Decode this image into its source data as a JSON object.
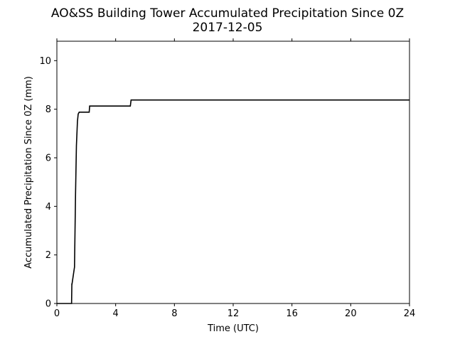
{
  "chart_data": {
    "type": "line",
    "title": "AO&SS Building Tower Accumulated Precipitation Since 0Z",
    "subtitle": "2017-12-05",
    "xlabel": "Time (UTC)",
    "ylabel": "Accumulated Precipitation Since 0Z (mm)",
    "xlim": [
      0,
      24
    ],
    "ylim": [
      0,
      10.8
    ],
    "xticks": [
      0,
      4,
      8,
      12,
      16,
      20,
      24
    ],
    "yticks": [
      0,
      2,
      4,
      6,
      8,
      10
    ],
    "grid": false,
    "series": [
      {
        "color": "#000000",
        "x": [
          0,
          1.0,
          1.02,
          1.03,
          1.2,
          1.27,
          1.33,
          1.4,
          1.45,
          1.52,
          1.58,
          2.2,
          2.23,
          5.0,
          5.05,
          24
        ],
        "y": [
          0,
          0,
          0.8,
          0.8,
          1.5,
          4.5,
          6.5,
          7.5,
          7.8,
          7.88,
          7.88,
          7.88,
          8.13,
          8.13,
          8.38,
          8.38
        ]
      }
    ]
  }
}
